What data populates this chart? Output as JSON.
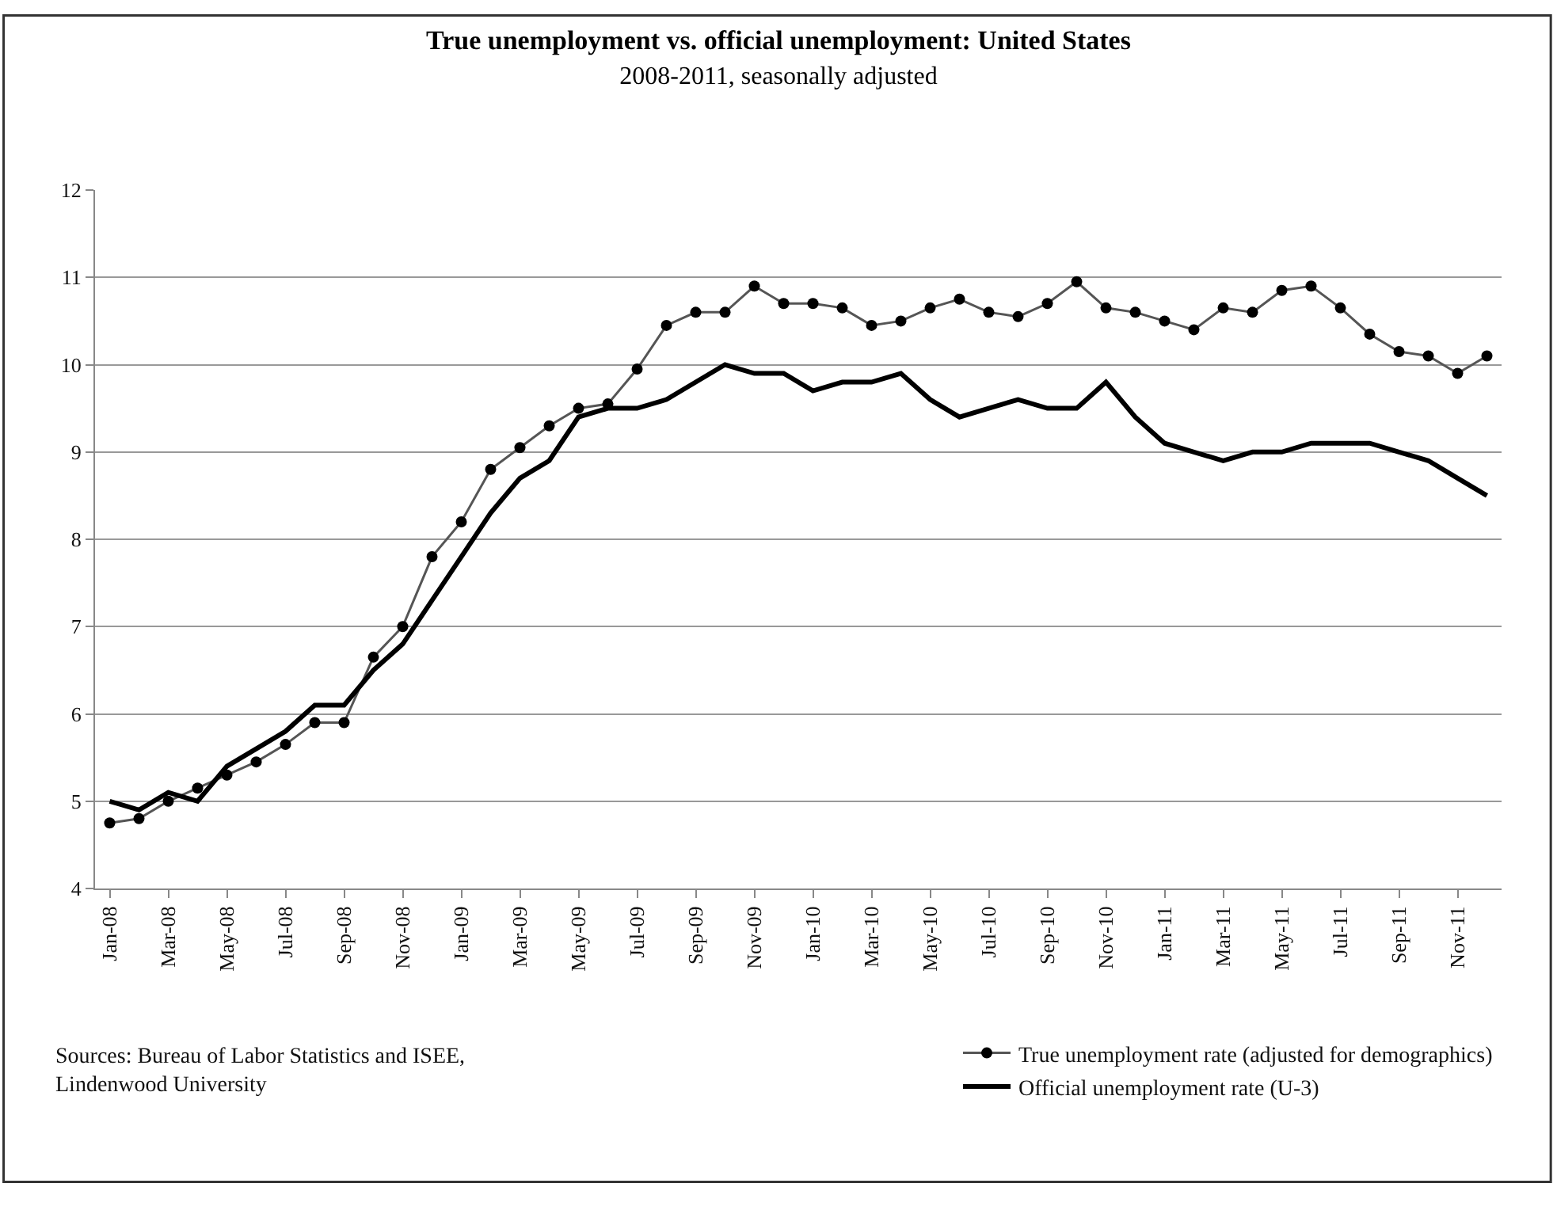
{
  "chart_data": {
    "type": "line",
    "title": "True unemployment vs. official unemployment: United States",
    "subtitle": "2008-2011, seasonally adjusted",
    "categories": [
      "Jan-08",
      null,
      "Mar-08",
      null,
      "May-08",
      null,
      "Jul-08",
      null,
      "Sep-08",
      null,
      "Nov-08",
      null,
      "Jan-09",
      null,
      "Mar-09",
      null,
      "May-09",
      null,
      "Jul-09",
      null,
      "Sep-09",
      null,
      "Nov-09",
      null,
      "Jan-10",
      null,
      "Mar-10",
      null,
      "May-10",
      null,
      "Jul-10",
      null,
      "Sep-10",
      null,
      "Nov-10",
      null,
      "Jan-11",
      null,
      "Mar-11",
      null,
      "May-11",
      null,
      "Jul-11",
      null,
      "Sep-11",
      null,
      "Nov-11",
      null
    ],
    "series": [
      {
        "name": "True unemployment rate (adjusted for demographics)",
        "color": "#555555",
        "marker": "circle",
        "values": [
          4.75,
          4.8,
          5.0,
          5.15,
          5.3,
          5.45,
          5.65,
          5.9,
          5.9,
          6.65,
          7.0,
          7.8,
          8.2,
          8.8,
          9.05,
          9.3,
          9.5,
          9.55,
          9.95,
          10.45,
          10.6,
          10.6,
          10.9,
          10.7,
          10.7,
          10.65,
          10.45,
          10.5,
          10.65,
          10.75,
          10.6,
          10.55,
          10.7,
          10.95,
          10.65,
          10.6,
          10.5,
          10.4,
          10.65,
          10.6,
          10.85,
          10.9,
          10.65,
          10.35,
          10.15,
          10.1,
          9.9,
          10.1
        ]
      },
      {
        "name": "Official unemployment rate (U-3)",
        "color": "#000000",
        "marker": "none",
        "values": [
          5.0,
          4.9,
          5.1,
          5.0,
          5.4,
          5.6,
          5.8,
          6.1,
          6.1,
          6.5,
          6.8,
          7.3,
          7.8,
          8.3,
          8.7,
          8.9,
          9.4,
          9.5,
          9.5,
          9.6,
          9.8,
          10.0,
          9.9,
          9.9,
          9.7,
          9.8,
          9.8,
          9.9,
          9.6,
          9.4,
          9.5,
          9.6,
          9.5,
          9.5,
          9.8,
          9.4,
          9.1,
          9.0,
          8.9,
          9.0,
          9.0,
          9.1,
          9.1,
          9.1,
          9.0,
          8.9,
          8.7,
          8.5
        ]
      }
    ],
    "ylim": [
      4,
      12
    ],
    "yticks": [
      4,
      5,
      6,
      7,
      8,
      9,
      10,
      11,
      12
    ],
    "grid": "y",
    "legend": "bottom right",
    "annotations": [
      "Sources: Bureau of Labor Statistics and ISEE,\nLindenwood University"
    ]
  }
}
